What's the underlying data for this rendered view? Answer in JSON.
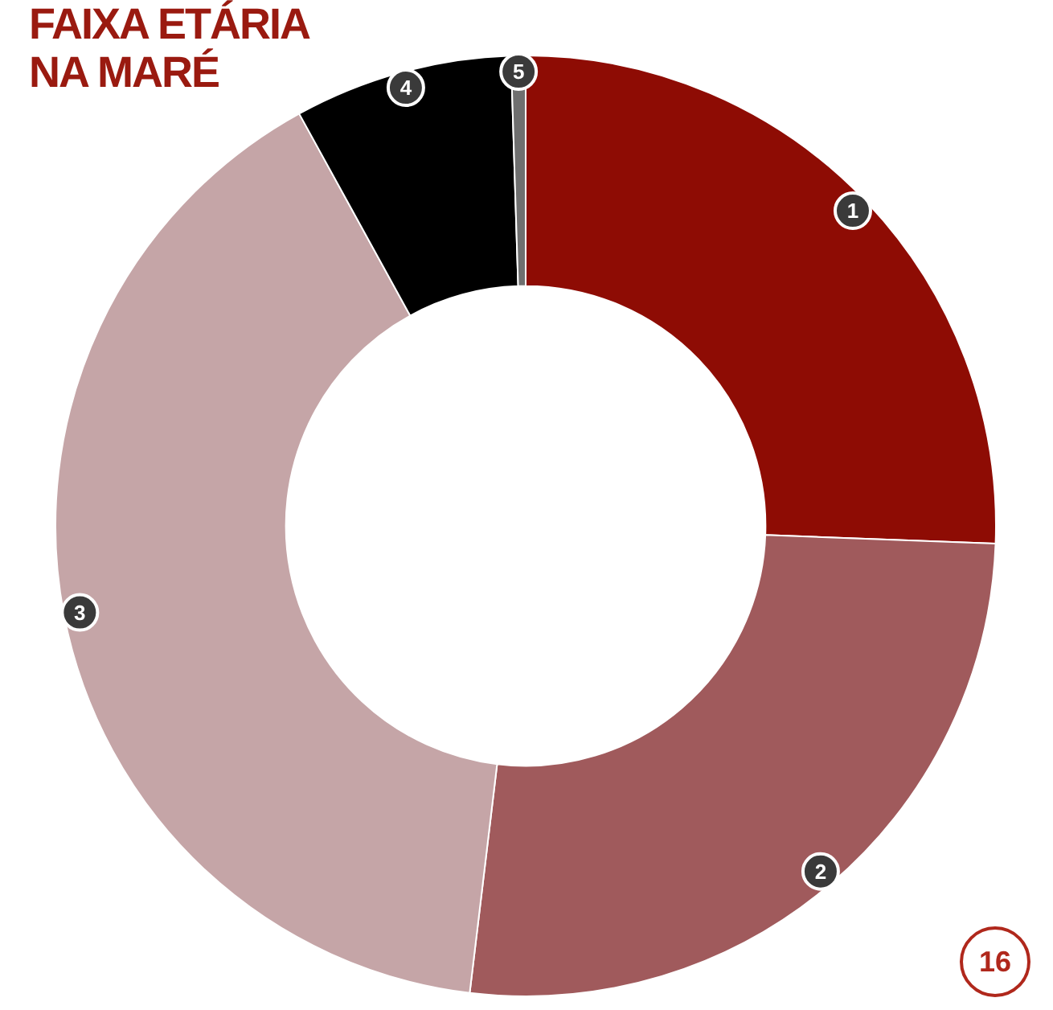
{
  "chart_data": {
    "type": "donut",
    "title": "FAIXA ETÁRIA\nNA MARÉ",
    "categories": [
      "1",
      "2",
      "3",
      "4",
      "5"
    ],
    "values": [
      25.6,
      26.3,
      40.1,
      7.5,
      0.5
    ],
    "colors": [
      "#8e0c04",
      "#a05a5c",
      "#c5a5a7",
      "#000000",
      "#6f6f6f"
    ],
    "annotations": [
      "16"
    ],
    "legend": false
  }
}
